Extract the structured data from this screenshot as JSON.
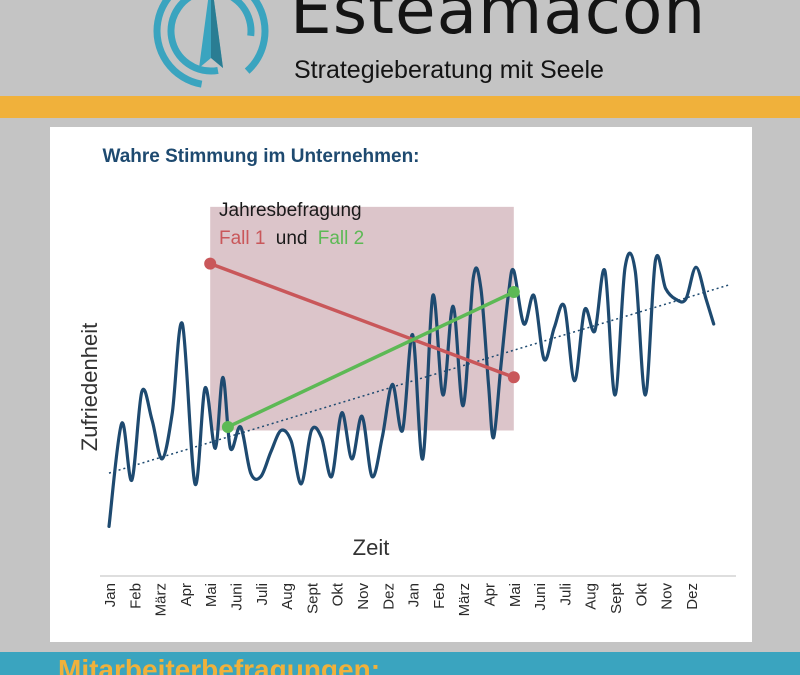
{
  "brand": {
    "name": "Esteamacon",
    "tagline": "Strategieberatung mit Seele",
    "logo_icon": "compass-needle-icon"
  },
  "footer": {
    "text": "Mitarbeiterbefragungen:"
  },
  "colors": {
    "header_bg": "#c4c4c4",
    "accent_orange": "#f0b13b",
    "footer_teal": "#3aa4bf",
    "series_blue": "#1e4a70",
    "fall1_red": "#c9575a",
    "fall2_green": "#5db955",
    "box_pink": "#dcc5ca"
  },
  "chart_data": {
    "type": "line",
    "title": "Wahre Stimmung im Unternehmen:",
    "xlabel": "Zeit",
    "ylabel": "Zufriedenheit",
    "ylim": [
      0,
      100
    ],
    "grid": false,
    "categories": [
      "Jan",
      "Feb",
      "März",
      "Apr",
      "Mai",
      "Juni",
      "Juli",
      "Aug",
      "Sept",
      "Okt",
      "Nov",
      "Dez",
      "Jan",
      "Feb",
      "März",
      "Apr",
      "Mai",
      "Juni",
      "Juli",
      "Aug",
      "Sept",
      "Okt",
      "Nov",
      "Dez"
    ],
    "series": [
      {
        "x": [
          0,
          0.5,
          0.9,
          1.3,
          1.7,
          2.1,
          2.5,
          2.9,
          3.4,
          3.8,
          4.2,
          4.5,
          4.8,
          5.2,
          5.6,
          6.0,
          6.4,
          6.8,
          7.2,
          7.6,
          8.0,
          8.4,
          8.8,
          9.2,
          9.6,
          10.0,
          10.4,
          10.8,
          11.2,
          11.6,
          12.0,
          12.4,
          12.8,
          13.2,
          13.6,
          14.0,
          14.4,
          14.7,
          15.0,
          15.2,
          15.5,
          15.8,
          16.0,
          16.4,
          16.8,
          17.2,
          17.6,
          18.0,
          18.4,
          18.8,
          19.2,
          19.6,
          20.0,
          20.4,
          20.8,
          21.2,
          21.6,
          22.0,
          22.4,
          22.8,
          23.2,
          23.6,
          23.9
        ],
        "y": [
          3,
          32,
          16,
          41,
          33,
          22,
          35,
          60,
          15,
          42,
          25,
          45,
          25,
          31,
          18,
          17,
          24,
          30,
          27,
          15,
          30,
          28,
          17,
          35,
          22,
          34,
          17,
          28,
          43,
          30,
          57,
          22,
          68,
          40,
          65,
          37,
          73,
          70,
          43,
          28,
          49,
          69,
          75,
          60,
          68,
          50,
          59,
          65,
          44,
          64,
          58,
          75,
          40,
          76,
          75,
          40,
          78,
          70,
          67,
          67,
          76,
          67,
          60
        ],
        "smooth": true
      }
    ],
    "trendline": {
      "from": [
        0,
        18
      ],
      "to": [
        24.5,
        71
      ],
      "style": "dotted"
    },
    "box": {
      "x_from": 4,
      "x_to": 16,
      "y_from": 30,
      "y_to": 93
    },
    "box_caption": [
      "Jahresbefragung",
      "Fall 1",
      "und",
      "Fall 2"
    ],
    "fall1": {
      "label": "Fall 1",
      "from": [
        4,
        77
      ],
      "to": [
        16,
        45
      ]
    },
    "fall2": {
      "label": "Fall 2",
      "from": [
        4.7,
        31
      ],
      "to": [
        16,
        69
      ]
    }
  }
}
